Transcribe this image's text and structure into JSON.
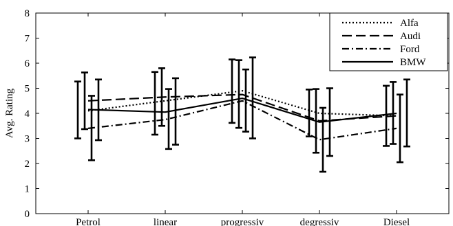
{
  "chart_data": {
    "type": "line",
    "title": "",
    "xlabel": "",
    "ylabel": "Avg. Rating",
    "categories": [
      "Petrol",
      "linear",
      "progressiv",
      "degressiv",
      "Diesel"
    ],
    "ylim": [
      0,
      8
    ],
    "yticks": [
      0,
      1,
      2,
      3,
      4,
      5,
      6,
      7,
      8
    ],
    "grid": false,
    "legend_position": "top-right",
    "error_bars": true,
    "series": [
      {
        "name": "Alfa",
        "dash": "dotted",
        "values": [
          4.1,
          4.5,
          4.9,
          4.0,
          3.9
        ],
        "err_low": [
          3.0,
          3.15,
          3.62,
          3.08,
          2.7
        ],
        "err_high": [
          5.27,
          5.65,
          6.15,
          4.95,
          5.1
        ]
      },
      {
        "name": "Audi",
        "dash": "dashed",
        "values": [
          4.5,
          4.65,
          4.75,
          3.7,
          3.9
        ],
        "err_low": [
          3.37,
          3.5,
          3.42,
          2.43,
          2.78
        ],
        "err_high": [
          5.63,
          5.8,
          6.12,
          4.97,
          5.25
        ]
      },
      {
        "name": "Ford",
        "dash": "dashdot",
        "values": [
          3.4,
          3.75,
          4.5,
          2.95,
          3.4
        ],
        "err_low": [
          2.13,
          2.58,
          3.27,
          1.67,
          2.05
        ],
        "err_high": [
          4.7,
          4.97,
          5.75,
          4.22,
          4.75
        ]
      },
      {
        "name": "BMW",
        "dash": "solid",
        "values": [
          4.15,
          4.05,
          4.6,
          3.65,
          4.0
        ],
        "err_low": [
          2.93,
          2.75,
          3.0,
          2.3,
          2.68
        ],
        "err_high": [
          5.35,
          5.4,
          6.23,
          5.0,
          5.35
        ]
      }
    ]
  }
}
